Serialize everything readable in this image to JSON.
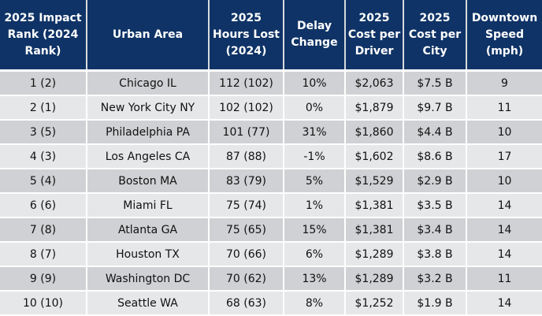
{
  "table": {
    "headers": [
      "2025 Impact Rank (2024 Rank)",
      "Urban Area",
      "2025 Hours Lost (2024)",
      "Delay Change",
      "2025 Cost per Driver",
      "2025 Cost per City",
      "Downtown Speed (mph)"
    ],
    "rows": [
      [
        "1 (2)",
        "Chicago IL",
        "112 (102)",
        "10%",
        "$2,063",
        "$7.5 B",
        "9"
      ],
      [
        "2 (1)",
        "New York City NY",
        "102 (102)",
        "0%",
        "$1,879",
        "$9.7 B",
        "11"
      ],
      [
        "3 (5)",
        "Philadelphia PA",
        "101 (77)",
        "31%",
        "$1,860",
        "$4.4 B",
        "10"
      ],
      [
        "4 (3)",
        "Los Angeles CA",
        "87 (88)",
        "-1%",
        "$1,602",
        "$8.6 B",
        "17"
      ],
      [
        "5 (4)",
        "Boston MA",
        "83 (79)",
        "5%",
        "$1,529",
        "$2.9 B",
        "10"
      ],
      [
        "6 (6)",
        "Miami FL",
        "75 (74)",
        "1%",
        "$1,381",
        "$3.5 B",
        "14"
      ],
      [
        "7 (8)",
        "Atlanta GA",
        "75 (65)",
        "15%",
        "$1,381",
        "$3.4 B",
        "14"
      ],
      [
        "8 (7)",
        "Houston TX",
        "70 (66)",
        "6%",
        "$1,289",
        "$3.8 B",
        "14"
      ],
      [
        "9 (9)",
        "Washington DC",
        "70 (62)",
        "13%",
        "$1,289",
        "$3.2 B",
        "11"
      ],
      [
        "10 (10)",
        "Seattle WA",
        "68 (63)",
        "8%",
        "$1,252",
        "$1.9 B",
        "14"
      ]
    ]
  },
  "colors": {
    "header_bg": "#0f3366",
    "header_text": "#ffffff",
    "row_dark": "#d0d1d4",
    "row_light": "#e6e7e9"
  }
}
